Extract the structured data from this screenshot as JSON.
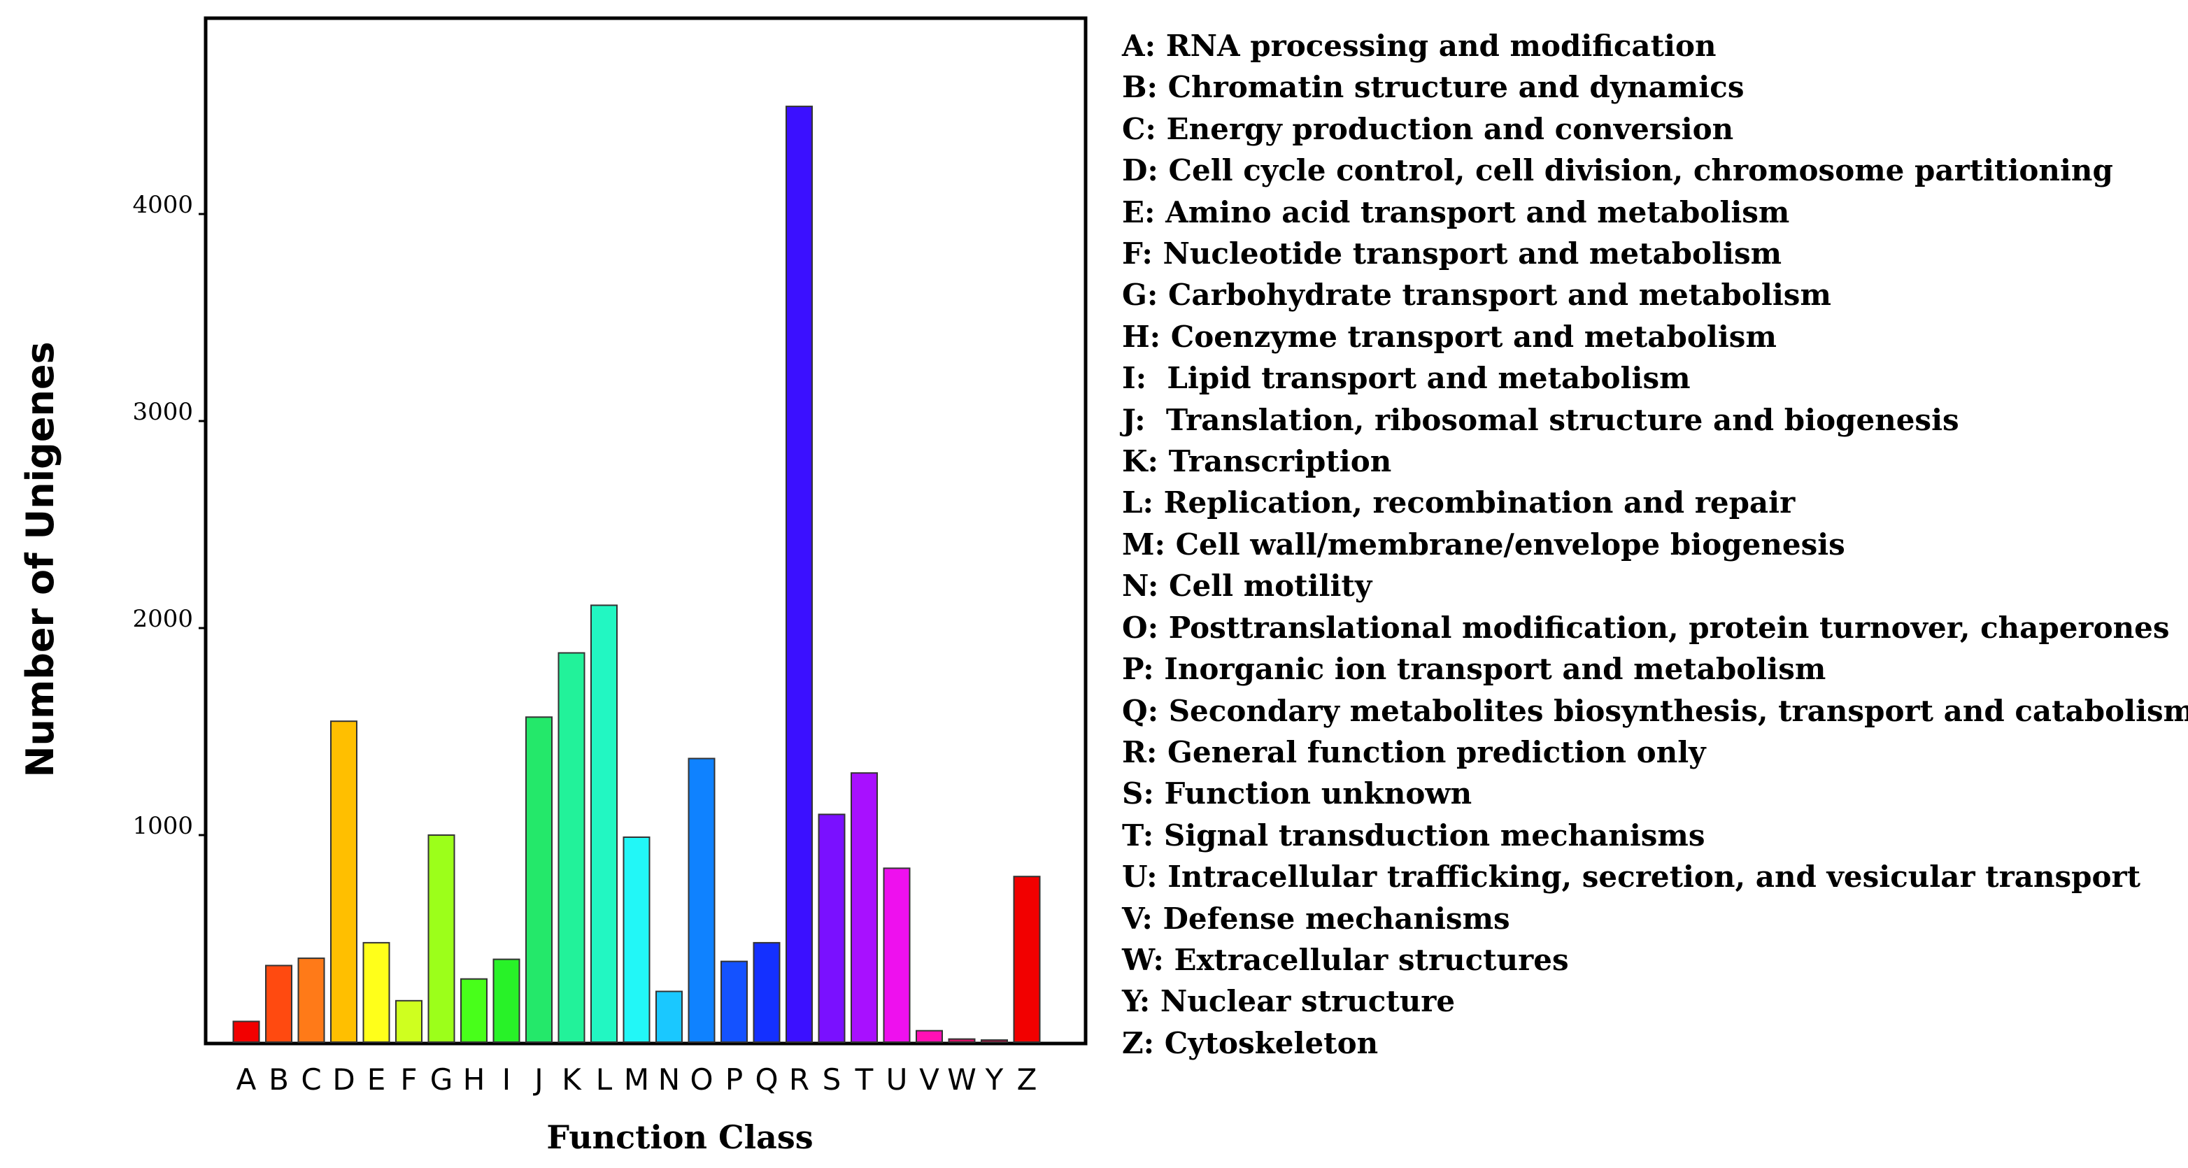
{
  "chart_data": {
    "type": "bar",
    "title": "",
    "xlabel": "Function Class",
    "ylabel": "Number of Unigenes",
    "ylim": [
      0,
      4900
    ],
    "yticks": [
      1000,
      2000,
      3000,
      4000
    ],
    "categories": [
      "A",
      "B",
      "C",
      "D",
      "E",
      "F",
      "G",
      "H",
      "I",
      "J",
      "K",
      "L",
      "M",
      "N",
      "O",
      "P",
      "Q",
      "R",
      "S",
      "T",
      "U",
      "V",
      "W",
      "Y",
      "Z"
    ],
    "values": [
      100,
      370,
      405,
      1550,
      480,
      200,
      1000,
      305,
      400,
      1570,
      1880,
      2110,
      990,
      245,
      1370,
      390,
      480,
      4520,
      1100,
      1300,
      840,
      55,
      15,
      10,
      800
    ],
    "colors": [
      "#f20000",
      "#ff4a10",
      "#ff7a18",
      "#ffbf00",
      "#ffff1a",
      "#cfff1f",
      "#9cff1a",
      "#48ff1a",
      "#28f228",
      "#24e86a",
      "#22f29a",
      "#22f7c2",
      "#22f7f7",
      "#1ac8ff",
      "#0f82ff",
      "#1452ff",
      "#1430ff",
      "#3b10ff",
      "#7a10ff",
      "#a810ff",
      "#ee10ee",
      "#ff10b5",
      "#d71067",
      "#c01048",
      "#f20000"
    ],
    "legend": [
      "A: RNA processing and modification",
      "B: Chromatin structure and dynamics",
      "C: Energy production and conversion",
      "D: Cell cycle control, cell division, chromosome partitioning",
      "E: Amino acid transport and metabolism",
      "F: Nucleotide transport and metabolism",
      "G: Carbohydrate transport and metabolism",
      "H: Coenzyme transport and metabolism",
      "I:  Lipid transport and metabolism",
      "J:  Translation, ribosomal structure and biogenesis",
      "K: Transcription",
      "L: Replication, recombination and repair",
      "M: Cell wall/membrane/envelope biogenesis",
      "N: Cell motility",
      "O: Posttranslational modification, protein turnover, chaperones",
      "P: Inorganic ion transport and metabolism",
      "Q: Secondary metabolites biosynthesis, transport and catabolism",
      "R: General function prediction only",
      "S: Function unknown",
      "T: Signal transduction mechanisms",
      "U: Intracellular trafficking, secretion, and vesicular transport",
      "V: Defense mechanisms",
      "W: Extracellular structures",
      "Y: Nuclear structure",
      "Z: Cytoskeleton"
    ]
  }
}
